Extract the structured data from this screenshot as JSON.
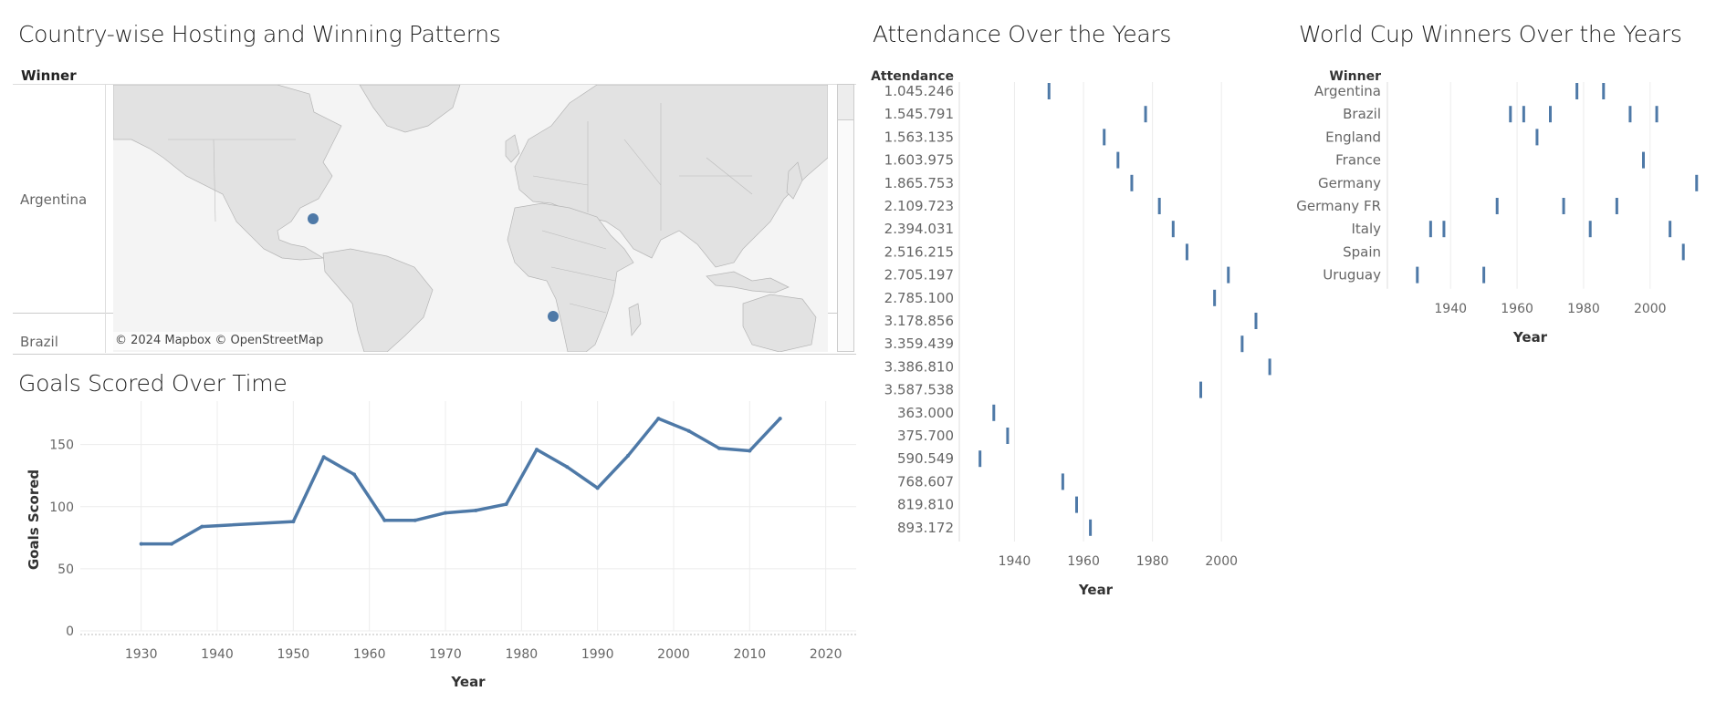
{
  "map_panel": {
    "title": "Country-wise Hosting and Winning Patterns",
    "column_header": "Winner",
    "rows": [
      "Argentina",
      "Brazil"
    ],
    "attribution": "© 2024 Mapbox © OpenStreetMap"
  },
  "colors": {
    "mark": "#4e79a7",
    "grid": "#ececec",
    "land": "#e3e3e3",
    "ocean": "#f5f5f5"
  },
  "chart_data": [
    {
      "type": "line",
      "title": "Goals Scored Over Time",
      "xlabel": "Year",
      "ylabel": "Goals Scored",
      "x": [
        1930,
        1934,
        1938,
        1950,
        1954,
        1958,
        1962,
        1966,
        1970,
        1974,
        1978,
        1982,
        1986,
        1990,
        1994,
        1998,
        2002,
        2006,
        2010,
        2014
      ],
      "values": [
        70,
        70,
        84,
        88,
        140,
        126,
        89,
        89,
        95,
        97,
        102,
        146,
        132,
        115,
        141,
        171,
        161,
        147,
        145,
        171
      ],
      "xlim": [
        1922,
        2024
      ],
      "ylim": [
        0,
        185
      ],
      "xticks": [
        1930,
        1940,
        1950,
        1960,
        1970,
        1980,
        1990,
        2000,
        2010,
        2020
      ],
      "yticks": [
        0,
        50,
        100,
        150
      ],
      "grid": true
    },
    {
      "type": "scatter",
      "title": "Attendance Over the Years",
      "row_header": "Attendance",
      "xlabel": "Year",
      "categories": [
        "1.045.246",
        "1.545.791",
        "1.563.135",
        "1.603.975",
        "1.865.753",
        "2.109.723",
        "2.394.031",
        "2.516.215",
        "2.705.197",
        "2.785.100",
        "3.178.856",
        "3.359.439",
        "3.386.810",
        "3.587.538",
        "363.000",
        "375.700",
        "590.549",
        "768.607",
        "819.810",
        "893.172"
      ],
      "x": [
        1950,
        1978,
        1966,
        1970,
        1974,
        1982,
        1986,
        1990,
        2002,
        1998,
        2010,
        2006,
        2014,
        1994,
        1934,
        1938,
        1930,
        1954,
        1958,
        1962
      ],
      "xlim": [
        1924,
        2019
      ],
      "xticks": [
        1940,
        1960,
        1980,
        2000
      ],
      "grid": true
    },
    {
      "type": "scatter",
      "title": "World Cup Winners Over the Years",
      "row_header": "Winner",
      "xlabel": "Year",
      "categories": [
        "Argentina",
        "Brazil",
        "England",
        "France",
        "Germany",
        "Germany FR",
        "Italy",
        "Spain",
        "Uruguay"
      ],
      "points": [
        {
          "winner": "Argentina",
          "x": [
            1978,
            1986
          ]
        },
        {
          "winner": "Brazil",
          "x": [
            1958,
            1962,
            1970,
            1994,
            2002
          ]
        },
        {
          "winner": "England",
          "x": [
            1966
          ]
        },
        {
          "winner": "France",
          "x": [
            1998
          ]
        },
        {
          "winner": "Germany",
          "x": [
            2014
          ]
        },
        {
          "winner": "Germany FR",
          "x": [
            1954,
            1974,
            1990
          ]
        },
        {
          "winner": "Italy",
          "x": [
            1934,
            1938,
            1982,
            2006
          ]
        },
        {
          "winner": "Spain",
          "x": [
            2010
          ]
        },
        {
          "winner": "Uruguay",
          "x": [
            1930,
            1950
          ]
        }
      ],
      "xlim": [
        1921,
        2019
      ],
      "xticks": [
        1940,
        1960,
        1980,
        2000
      ],
      "grid": true
    }
  ]
}
